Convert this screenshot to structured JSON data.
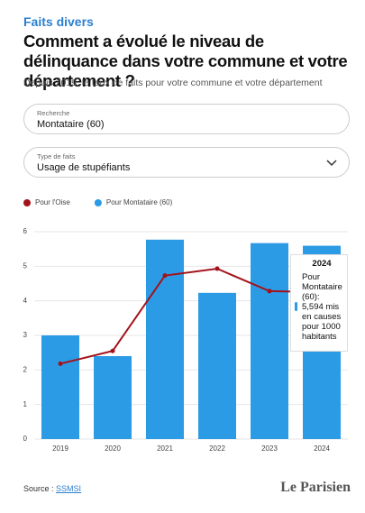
{
  "header": {
    "kicker": "Faits divers",
    "title": "Comment a évolué le niveau de délinquance dans votre commune et votre département ?",
    "subtitle": "Depuis 2019, le taux de faits pour votre commune et votre département"
  },
  "search": {
    "label": "Recherche",
    "value": "Montataire (60)"
  },
  "select": {
    "label": "Type de faits",
    "value": "Usage de stupéfiants"
  },
  "chart_data": {
    "type": "bar",
    "categories": [
      "2019",
      "2020",
      "2021",
      "2022",
      "2023",
      "2024"
    ],
    "series": [
      {
        "name": "Pour l'Oise",
        "type": "line",
        "color": "#a3121b",
        "values": [
          2.18,
          2.55,
          4.73,
          4.93,
          4.28,
          4.25
        ]
      },
      {
        "name": "Pour Montataire (60)",
        "type": "bar",
        "color": "#2b9be6",
        "values": [
          3.0,
          2.4,
          5.77,
          4.23,
          5.67,
          5.594
        ]
      }
    ],
    "ylim": [
      0,
      6
    ],
    "yticks": [
      0,
      1,
      2,
      3,
      4,
      5,
      6
    ],
    "grid": true
  },
  "tooltip": {
    "title": "2024",
    "text": "Pour Montataire (60): 5,594 mis en causes pour 1000 habitants"
  },
  "source": {
    "label": "Source :",
    "link": "SSMSI"
  },
  "logo": "Le Parisien"
}
